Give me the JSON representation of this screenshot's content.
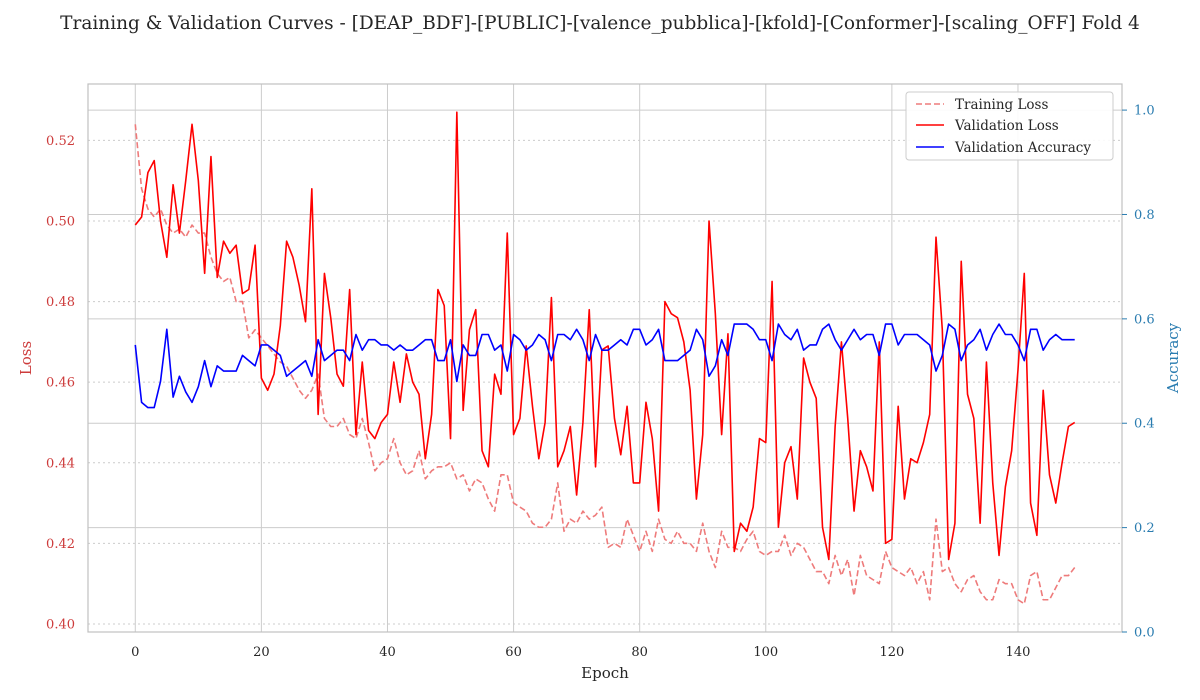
{
  "chart_data": {
    "type": "line",
    "title": "Training & Validation Curves - [DEAP_BDF]-[PUBLIC]-[valence_pubblica]-[kfold]-[Conformer]-[scaling_OFF] Fold 4",
    "xlabel": "Epoch",
    "ylabel_left": "Loss",
    "ylabel_right": "Accuracy",
    "xlim": [
      -7.5,
      156.5
    ],
    "ylim_left": [
      0.398,
      0.534
    ],
    "ylim_right": [
      0.0,
      1.05
    ],
    "x_ticks": [
      0,
      20,
      40,
      60,
      80,
      100,
      120,
      140
    ],
    "y_ticks_left": [
      0.4,
      0.42,
      0.44,
      0.46,
      0.48,
      0.5,
      0.52
    ],
    "y_ticks_right": [
      0.0,
      0.2,
      0.4,
      0.6,
      0.8,
      1.0
    ],
    "legend_position": "top-right",
    "grid": true,
    "colors": {
      "training_loss": "#ee7b7b",
      "validation_loss": "#ff0000",
      "validation_accuracy": "#0000ff",
      "left_axis": "#cd3b3b",
      "right_axis": "#2a7cb0",
      "text": "#262626",
      "grid": "#cccccc",
      "frame": "#c0c0c0"
    },
    "series": [
      {
        "name": "Training Loss",
        "axis": "left",
        "style": "dashed",
        "values": [
          0.524,
          0.508,
          0.503,
          0.501,
          0.503,
          0.499,
          0.497,
          0.498,
          0.496,
          0.499,
          0.497,
          0.497,
          0.491,
          0.487,
          0.485,
          0.486,
          0.48,
          0.48,
          0.471,
          0.473,
          0.471,
          0.469,
          0.467,
          0.465,
          0.464,
          0.461,
          0.458,
          0.456,
          0.458,
          0.462,
          0.451,
          0.449,
          0.449,
          0.451,
          0.447,
          0.446,
          0.451,
          0.445,
          0.438,
          0.44,
          0.441,
          0.446,
          0.44,
          0.437,
          0.438,
          0.443,
          0.436,
          0.438,
          0.439,
          0.439,
          0.44,
          0.436,
          0.437,
          0.433,
          0.436,
          0.435,
          0.431,
          0.428,
          0.437,
          0.437,
          0.43,
          0.429,
          0.428,
          0.425,
          0.424,
          0.424,
          0.426,
          0.435,
          0.423,
          0.426,
          0.425,
          0.428,
          0.426,
          0.427,
          0.429,
          0.419,
          0.42,
          0.419,
          0.426,
          0.422,
          0.418,
          0.423,
          0.418,
          0.426,
          0.421,
          0.42,
          0.423,
          0.42,
          0.42,
          0.418,
          0.425,
          0.418,
          0.414,
          0.423,
          0.419,
          0.419,
          0.418,
          0.421,
          0.423,
          0.418,
          0.417,
          0.418,
          0.418,
          0.422,
          0.417,
          0.42,
          0.419,
          0.416,
          0.413,
          0.413,
          0.41,
          0.417,
          0.412,
          0.416,
          0.407,
          0.417,
          0.412,
          0.411,
          0.41,
          0.418,
          0.414,
          0.413,
          0.412,
          0.414,
          0.41,
          0.413,
          0.406,
          0.426,
          0.413,
          0.414,
          0.41,
          0.408,
          0.411,
          0.412,
          0.408,
          0.406,
          0.406,
          0.411,
          0.41,
          0.41,
          0.406,
          0.405,
          0.412,
          0.413,
          0.406,
          0.406,
          0.409,
          0.412,
          0.412,
          0.414
        ]
      },
      {
        "name": "Validation Loss",
        "axis": "left",
        "style": "solid",
        "values": [
          0.499,
          0.501,
          0.512,
          0.515,
          0.5,
          0.491,
          0.509,
          0.497,
          0.51,
          0.524,
          0.51,
          0.487,
          0.516,
          0.486,
          0.495,
          0.492,
          0.494,
          0.482,
          0.483,
          0.494,
          0.461,
          0.458,
          0.462,
          0.474,
          0.495,
          0.491,
          0.484,
          0.475,
          0.508,
          0.452,
          0.487,
          0.476,
          0.462,
          0.459,
          0.483,
          0.447,
          0.465,
          0.448,
          0.446,
          0.45,
          0.452,
          0.465,
          0.455,
          0.467,
          0.46,
          0.457,
          0.441,
          0.452,
          0.483,
          0.479,
          0.446,
          0.527,
          0.453,
          0.473,
          0.478,
          0.443,
          0.439,
          0.462,
          0.457,
          0.497,
          0.447,
          0.451,
          0.469,
          0.454,
          0.441,
          0.45,
          0.481,
          0.439,
          0.443,
          0.449,
          0.432,
          0.45,
          0.478,
          0.439,
          0.468,
          0.469,
          0.451,
          0.442,
          0.454,
          0.435,
          0.435,
          0.455,
          0.446,
          0.428,
          0.48,
          0.477,
          0.476,
          0.47,
          0.458,
          0.431,
          0.447,
          0.5,
          0.477,
          0.447,
          0.472,
          0.418,
          0.425,
          0.423,
          0.429,
          0.446,
          0.445,
          0.485,
          0.424,
          0.44,
          0.444,
          0.431,
          0.466,
          0.46,
          0.456,
          0.424,
          0.416,
          0.449,
          0.47,
          0.451,
          0.428,
          0.443,
          0.439,
          0.433,
          0.47,
          0.42,
          0.421,
          0.454,
          0.431,
          0.441,
          0.44,
          0.445,
          0.452,
          0.496,
          0.473,
          0.416,
          0.425,
          0.49,
          0.457,
          0.451,
          0.425,
          0.465,
          0.435,
          0.417,
          0.434,
          0.443,
          0.463,
          0.487,
          0.43,
          0.422,
          0.458,
          0.437,
          0.43,
          0.44,
          0.449,
          0.45
        ]
      },
      {
        "name": "Validation Accuracy",
        "axis": "right",
        "style": "solid",
        "values": [
          0.55,
          0.44,
          0.43,
          0.43,
          0.48,
          0.58,
          0.45,
          0.49,
          0.46,
          0.44,
          0.47,
          0.52,
          0.47,
          0.51,
          0.5,
          0.5,
          0.5,
          0.53,
          0.52,
          0.51,
          0.55,
          0.55,
          0.54,
          0.53,
          0.49,
          0.5,
          0.51,
          0.52,
          0.49,
          0.56,
          0.52,
          0.53,
          0.54,
          0.54,
          0.52,
          0.57,
          0.54,
          0.56,
          0.56,
          0.55,
          0.55,
          0.54,
          0.55,
          0.54,
          0.54,
          0.55,
          0.56,
          0.56,
          0.52,
          0.52,
          0.56,
          0.48,
          0.55,
          0.53,
          0.53,
          0.57,
          0.57,
          0.54,
          0.55,
          0.5,
          0.57,
          0.56,
          0.54,
          0.55,
          0.57,
          0.56,
          0.52,
          0.57,
          0.57,
          0.56,
          0.58,
          0.56,
          0.52,
          0.57,
          0.54,
          0.54,
          0.55,
          0.56,
          0.55,
          0.58,
          0.58,
          0.55,
          0.56,
          0.58,
          0.52,
          0.52,
          0.52,
          0.53,
          0.54,
          0.58,
          0.56,
          0.49,
          0.51,
          0.56,
          0.53,
          0.59,
          0.59,
          0.59,
          0.58,
          0.56,
          0.56,
          0.52,
          0.59,
          0.57,
          0.56,
          0.58,
          0.54,
          0.55,
          0.55,
          0.58,
          0.59,
          0.56,
          0.54,
          0.56,
          0.58,
          0.56,
          0.57,
          0.57,
          0.53,
          0.59,
          0.59,
          0.55,
          0.57,
          0.57,
          0.57,
          0.56,
          0.55,
          0.5,
          0.53,
          0.59,
          0.58,
          0.52,
          0.55,
          0.56,
          0.58,
          0.54,
          0.57,
          0.59,
          0.57,
          0.57,
          0.55,
          0.52,
          0.58,
          0.58,
          0.54,
          0.56,
          0.57,
          0.56,
          0.56,
          0.56
        ]
      }
    ]
  }
}
